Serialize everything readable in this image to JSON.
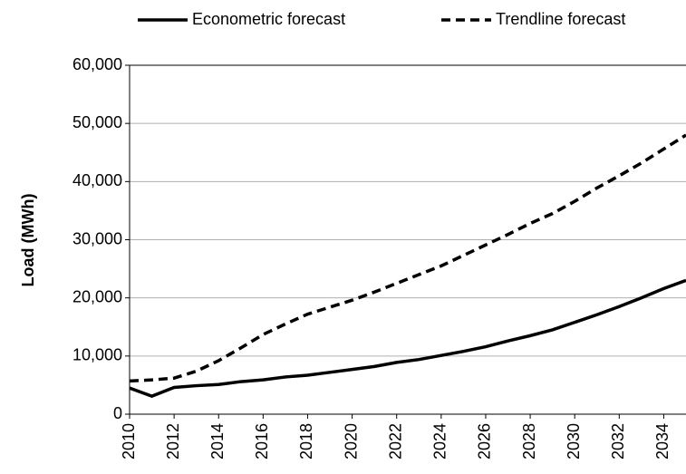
{
  "chart_data": {
    "type": "line",
    "y_label": "Load (MWh)",
    "x": [
      2010,
      2011,
      2012,
      2013,
      2014,
      2015,
      2016,
      2017,
      2018,
      2019,
      2020,
      2021,
      2022,
      2023,
      2024,
      2025,
      2026,
      2027,
      2028,
      2029,
      2030,
      2031,
      2032,
      2033,
      2034,
      2035
    ],
    "series": [
      {
        "name": "Econometric forecast",
        "color": "#000000",
        "dash": "solid",
        "values": [
          4500,
          3100,
          4600,
          4900,
          5100,
          5600,
          5900,
          6400,
          6700,
          7200,
          7700,
          8200,
          8900,
          9400,
          10100,
          10800,
          11600,
          12600,
          13500,
          14500,
          15800,
          17100,
          18500,
          20000,
          21600,
          23000
        ]
      },
      {
        "name": "Trendline forecast",
        "color": "#000000",
        "dash": "dashed",
        "values": [
          5700,
          5900,
          6200,
          7400,
          9200,
          11400,
          13700,
          15500,
          17200,
          18400,
          19600,
          21000,
          22500,
          24000,
          25500,
          27300,
          29100,
          30900,
          32800,
          34500,
          36600,
          38900,
          41000,
          43200,
          45600,
          48000
        ]
      }
    ],
    "xlim": [
      2010,
      2035
    ],
    "xticks": [
      2010,
      2012,
      2014,
      2016,
      2018,
      2020,
      2022,
      2024,
      2026,
      2028,
      2030,
      2032,
      2034
    ],
    "ylim": [
      0,
      60000
    ],
    "yticks": [
      0,
      {
        "value": 10000,
        "label": "10,000"
      },
      {
        "value": 20000,
        "label": "20,000"
      },
      {
        "value": 30000,
        "label": "30,000"
      },
      {
        "value": 40000,
        "label": "40,000"
      },
      {
        "value": 50000,
        "label": "50,000"
      },
      {
        "value": 60000,
        "label": "60,000"
      }
    ],
    "grid": true,
    "legend": "top"
  }
}
